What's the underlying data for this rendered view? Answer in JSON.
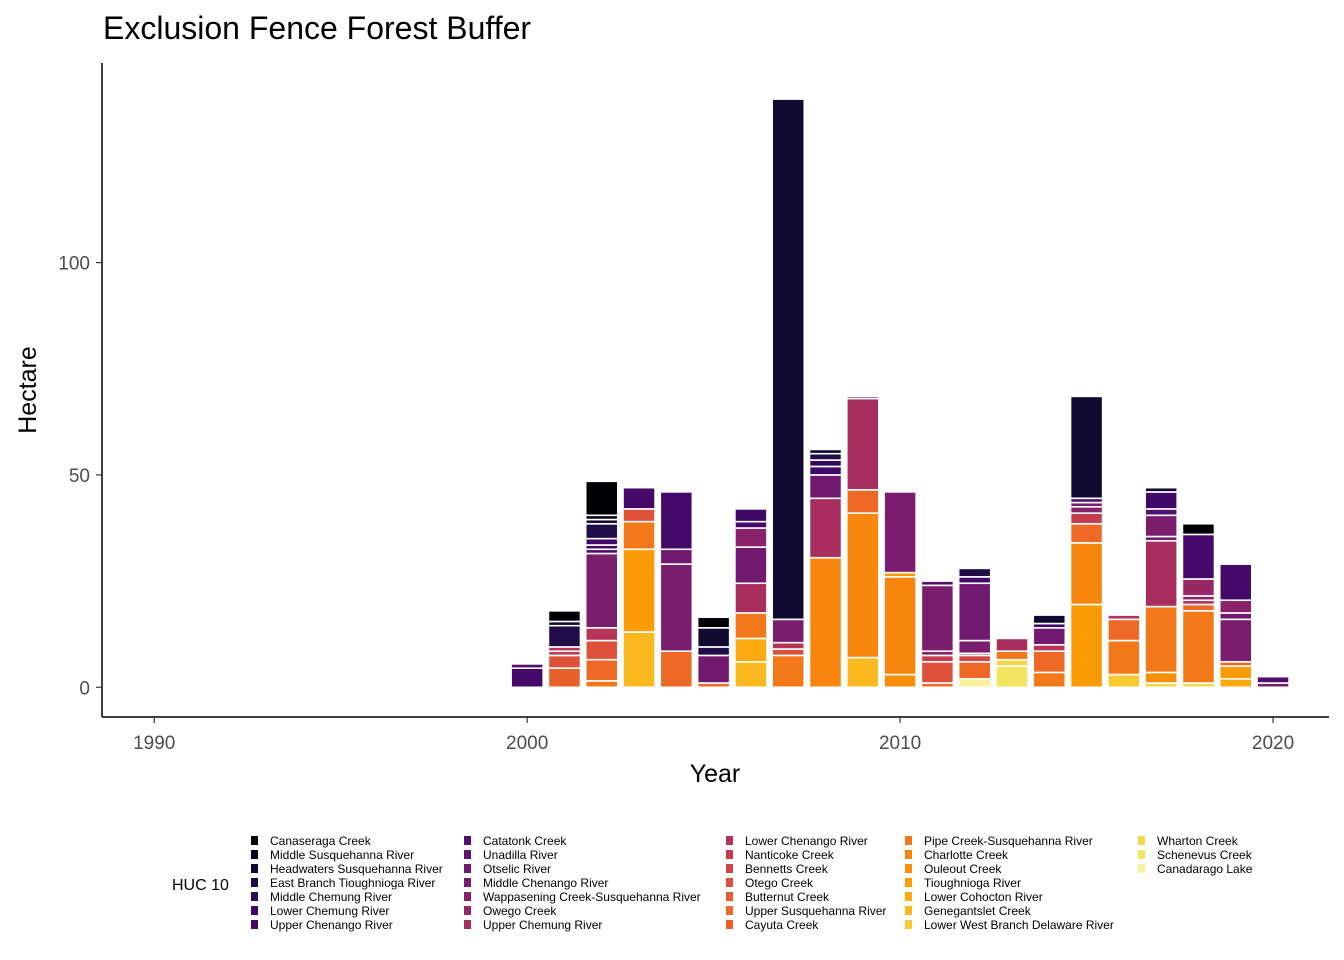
{
  "chart_data": {
    "type": "bar",
    "stacked": true,
    "title": "Exclusion Fence Forest Buffer",
    "xlabel": "Year",
    "ylabel": "Hectare",
    "xlim": [
      1988.6,
      2021.5
    ],
    "ylim": [
      -7,
      147
    ],
    "x_ticks": [
      1990,
      2000,
      2010,
      2020
    ],
    "y_ticks": [
      0,
      50,
      100
    ],
    "grid": false,
    "legend": {
      "title": "HUC 10",
      "position": "bottom"
    },
    "series": [
      {
        "name": "Canaseraga Creek",
        "color": "#000004"
      },
      {
        "name": "Middle Susquehanna River",
        "color": "#07051B"
      },
      {
        "name": "Headwaters Susquehanna River",
        "color": "#110A30"
      },
      {
        "name": "East Branch Tioughnioga River",
        "color": "#1F0C48"
      },
      {
        "name": "Middle Chemung River",
        "color": "#2F0A5B"
      },
      {
        "name": "Lower Chemung River",
        "color": "#410967"
      },
      {
        "name": "Upper Chenango River",
        "color": "#450A69"
      },
      {
        "name": "Catatonk Creek",
        "color": "#520E6D"
      },
      {
        "name": "Unadilla River",
        "color": "#62146E"
      },
      {
        "name": "Otselic River",
        "color": "#71196E"
      },
      {
        "name": "Middle Chenango River",
        "color": "#7A1D6D"
      },
      {
        "name": "Wappasening Creek-Susquehanna River",
        "color": "#89226A"
      },
      {
        "name": "Owego Creek",
        "color": "#982766"
      },
      {
        "name": "Upper Chemung River",
        "color": "#A82E5F"
      },
      {
        "name": "Lower Chenango River",
        "color": "#B63458"
      },
      {
        "name": "Nanticoke Creek",
        "color": "#C43C4E"
      },
      {
        "name": "Bennetts Creek",
        "color": "#D04545"
      },
      {
        "name": "Otego Creek",
        "color": "#DD513A"
      },
      {
        "name": "Butternut Creek",
        "color": "#E55C30"
      },
      {
        "name": "Upper Susquehanna River",
        "color": "#ED6925"
      },
      {
        "name": "Cayuta Creek",
        "color": "#E8602C"
      },
      {
        "name": "Pipe Creek-Susquehanna River",
        "color": "#F37819"
      },
      {
        "name": "Charlotte Creek",
        "color": "#F7850E"
      },
      {
        "name": "Ouleout Creek",
        "color": "#F98E09"
      },
      {
        "name": "Tioughnioga River",
        "color": "#FB9B06"
      },
      {
        "name": "Lower Cohocton River",
        "color": "#FCAA0F"
      },
      {
        "name": "Genegantslet Creek",
        "color": "#FBB91F"
      },
      {
        "name": "Lower West Branch Delaware River",
        "color": "#F8C931"
      },
      {
        "name": "Wharton Creek",
        "color": "#F3D84A"
      },
      {
        "name": "Schenevus Creek",
        "color": "#F2E661"
      },
      {
        "name": "Canadarago Lake",
        "color": "#F6F39C"
      }
    ],
    "stacks": [
      {
        "year": 2000,
        "segments": [
          [
            "Upper Chenango River",
            4.5
          ],
          [
            "Catatonk Creek",
            1
          ]
        ]
      },
      {
        "year": 2001,
        "segments": [
          [
            "Cayuta Creek",
            4.5
          ],
          [
            "Otego Creek",
            3
          ],
          [
            "Nanticoke Creek",
            1
          ],
          [
            "Lower Chenango River",
            1
          ],
          [
            "East Branch Tioughnioga River",
            5
          ],
          [
            "Headwaters Susquehanna River",
            1
          ],
          [
            "Canaseraga Creek",
            2.5
          ]
        ]
      },
      {
        "year": 2002,
        "segments": [
          [
            "Pipe Creek-Susquehanna River",
            1.5
          ],
          [
            "Upper Susquehanna River",
            5
          ],
          [
            "Otego Creek",
            4.5
          ],
          [
            "Lower Chenango River",
            3
          ],
          [
            "Middle Chenango River",
            17.5
          ],
          [
            "Catatonk Creek",
            1
          ],
          [
            "Upper Chenango River",
            1
          ],
          [
            "Lower Chemung River",
            1.5
          ],
          [
            "East Branch Tioughnioga River",
            3.5
          ],
          [
            "Headwaters Susquehanna River",
            1
          ],
          [
            "Middle Susquehanna River",
            1
          ],
          [
            "Canaseraga Creek",
            8
          ]
        ]
      },
      {
        "year": 2003,
        "segments": [
          [
            "Genegantslet Creek",
            13
          ],
          [
            "Tioughnioga River",
            19.5
          ],
          [
            "Pipe Creek-Susquehanna River",
            6.5
          ],
          [
            "Otego Creek",
            3
          ],
          [
            "Upper Chenango River",
            5
          ]
        ]
      },
      {
        "year": 2004,
        "segments": [
          [
            "Upper Susquehanna River",
            8.5
          ],
          [
            "Middle Chenango River",
            20.5
          ],
          [
            "Otselic River",
            3.5
          ],
          [
            "Upper Chenango River",
            13.5
          ]
        ]
      },
      {
        "year": 2005,
        "segments": [
          [
            "Upper Susquehanna River",
            1
          ],
          [
            "Otselic River",
            6.5
          ],
          [
            "East Branch Tioughnioga River",
            2
          ],
          [
            "Headwaters Susquehanna River",
            4.5
          ],
          [
            "Canaseraga Creek",
            2.5
          ]
        ]
      },
      {
        "year": 2006,
        "segments": [
          [
            "Genegantslet Creek",
            6
          ],
          [
            "Lower Cohocton River",
            5.5
          ],
          [
            "Pipe Creek-Susquehanna River",
            6
          ],
          [
            "Upper Chemung River",
            7
          ],
          [
            "Otselic River",
            8.5
          ],
          [
            "Wappasening Creek-Susquehanna River",
            4.5
          ],
          [
            "Upper Chenango River",
            1.5
          ],
          [
            "Lower Chemung River",
            3
          ]
        ]
      },
      {
        "year": 2007,
        "segments": [
          [
            "Pipe Creek-Susquehanna River",
            7.5
          ],
          [
            "Otego Creek",
            1.5
          ],
          [
            "Lower Chenango River",
            1.5
          ],
          [
            "Middle Chenango River",
            5.5
          ],
          [
            "Headwaters Susquehanna River",
            122.5
          ]
        ]
      },
      {
        "year": 2008,
        "segments": [
          [
            "Charlotte Creek",
            30.5
          ],
          [
            "Upper Chemung River",
            14
          ],
          [
            "Otselic River",
            5.5
          ],
          [
            "Lower Chemung River",
            2
          ],
          [
            "Middle Chemung River",
            1.5
          ],
          [
            "East Branch Tioughnioga River",
            1.5
          ],
          [
            "Headwaters Susquehanna River",
            1
          ]
        ]
      },
      {
        "year": 2009,
        "segments": [
          [
            "Genegantslet Creek",
            7
          ],
          [
            "Charlotte Creek",
            34
          ],
          [
            "Upper Susquehanna River",
            5.5
          ],
          [
            "Upper Chemung River",
            21.5
          ],
          [
            "Lower Chemung River",
            0.5
          ]
        ]
      },
      {
        "year": 2010,
        "segments": [
          [
            "Ouleout Creek",
            3
          ],
          [
            "Charlotte Creek",
            23
          ],
          [
            "Tioughnioga River",
            1
          ],
          [
            "Middle Chenango River",
            19
          ]
        ]
      },
      {
        "year": 2011,
        "segments": [
          [
            "Upper Susquehanna River",
            1
          ],
          [
            "Otego Creek",
            5
          ],
          [
            "Nanticoke Creek",
            1.5
          ],
          [
            "Wappasening Creek-Susquehanna River",
            1
          ],
          [
            "Middle Chenango River",
            15.5
          ],
          [
            "Catatonk Creek",
            1
          ]
        ]
      },
      {
        "year": 2012,
        "segments": [
          [
            "Canadarago Lake",
            2
          ],
          [
            "Upper Susquehanna River",
            4
          ],
          [
            "Bennetts Creek",
            1.5
          ],
          [
            "Lower Chenango River",
            0.5
          ],
          [
            "Middle Chenango River",
            3
          ],
          [
            "Otselic River",
            13.5
          ],
          [
            "Upper Chenango River",
            1.5
          ],
          [
            "East Branch Tioughnioga River",
            2
          ]
        ]
      },
      {
        "year": 2013,
        "segments": [
          [
            "Schenevus Creek",
            5
          ],
          [
            "Wharton Creek",
            1.5
          ],
          [
            "Pipe Creek-Susquehanna River",
            2
          ],
          [
            "Upper Chemung River",
            3
          ]
        ]
      },
      {
        "year": 2014,
        "segments": [
          [
            "Pipe Creek-Susquehanna River",
            3.5
          ],
          [
            "Upper Susquehanna River",
            5
          ],
          [
            "Lower Chenango River",
            1.5
          ],
          [
            "Otselic River",
            4
          ],
          [
            "Lower Chemung River",
            1
          ],
          [
            "Headwaters Susquehanna River",
            2
          ]
        ]
      },
      {
        "year": 2015,
        "segments": [
          [
            "Tioughnioga River",
            19.5
          ],
          [
            "Charlotte Creek",
            14.5
          ],
          [
            "Upper Susquehanna River",
            4.5
          ],
          [
            "Nanticoke Creek",
            2.5
          ],
          [
            "Wappasening Creek-Susquehanna River",
            1.5
          ],
          [
            "Middle Chenango River",
            1
          ],
          [
            "Catatonk Creek",
            1
          ],
          [
            "Headwaters Susquehanna River",
            24
          ]
        ]
      },
      {
        "year": 2016,
        "segments": [
          [
            "Lower West Branch Delaware River",
            3
          ],
          [
            "Pipe Creek-Susquehanna River",
            8
          ],
          [
            "Upper Susquehanna River",
            5
          ],
          [
            "Lower Chenango River",
            1
          ]
        ]
      },
      {
        "year": 2017,
        "segments": [
          [
            "Wharton Creek",
            1
          ],
          [
            "Ouleout Creek",
            2.5
          ],
          [
            "Pipe Creek-Susquehanna River",
            15.5
          ],
          [
            "Upper Chemung River",
            15.5
          ],
          [
            "Otselic River",
            1
          ],
          [
            "Middle Chenango River",
            5
          ],
          [
            "Catatonk Creek",
            1.5
          ],
          [
            "Lower Chemung River",
            4
          ],
          [
            "Headwaters Susquehanna River",
            1
          ]
        ]
      },
      {
        "year": 2018,
        "segments": [
          [
            "Wharton Creek",
            1
          ],
          [
            "Pipe Creek-Susquehanna River",
            17
          ],
          [
            "Upper Susquehanna River",
            1.5
          ],
          [
            "Lower Chenango River",
            1
          ],
          [
            "Wappasening Creek-Susquehanna River",
            1
          ],
          [
            "Owego Creek",
            4
          ],
          [
            "Upper Chenango River",
            10.5
          ],
          [
            "Canaseraga Creek",
            2.5
          ]
        ]
      },
      {
        "year": 2019,
        "segments": [
          [
            "Lower Cohocton River",
            2
          ],
          [
            "Tioughnioga River",
            3
          ],
          [
            "Upper Susquehanna River",
            1
          ],
          [
            "Middle Chenango River",
            10
          ],
          [
            "Otselic River",
            1.5
          ],
          [
            "Wappasening Creek-Susquehanna River",
            3
          ],
          [
            "Upper Chenango River",
            8.5
          ]
        ]
      },
      {
        "year": 2020,
        "segments": [
          [
            "Middle Chenango River",
            1
          ],
          [
            "Catatonk Creek",
            1.5
          ]
        ]
      }
    ]
  }
}
